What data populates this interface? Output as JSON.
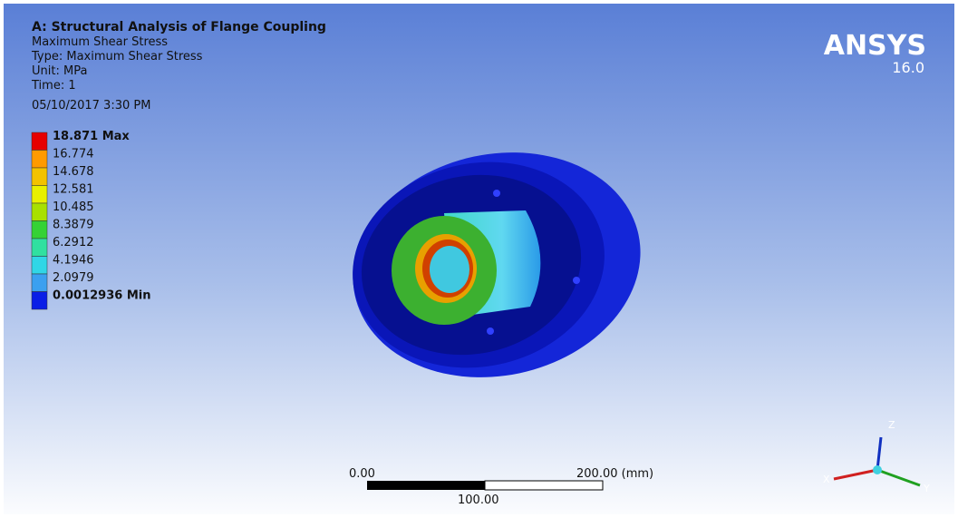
{
  "header": {
    "title": "A: Structural Analysis of Flange Coupling",
    "lines": [
      "Maximum Shear Stress",
      "Type: Maximum Shear Stress",
      "Unit: MPa",
      "Time: 1",
      "05/10/2017 3:30 PM"
    ]
  },
  "logo": {
    "name": "ANSYS",
    "version": "16.0"
  },
  "legend": {
    "labels": [
      "18.871 Max",
      "16.774",
      "14.678",
      "12.581",
      "10.485",
      "8.3879",
      "6.2912",
      "4.1946",
      "2.0979",
      "0.0012936 Min"
    ],
    "colors": [
      "#e60000",
      "#ff9a00",
      "#f2c200",
      "#e8f000",
      "#a8e000",
      "#35d235",
      "#30e0a0",
      "#30d6e6",
      "#3aa0f0",
      "#0a1ee6"
    ]
  },
  "scale_bar": {
    "start": "0.00",
    "end": "200.00 (mm)",
    "middle": "100.00"
  },
  "triad": {
    "z": "Z",
    "x": "X",
    "y": "Y"
  }
}
